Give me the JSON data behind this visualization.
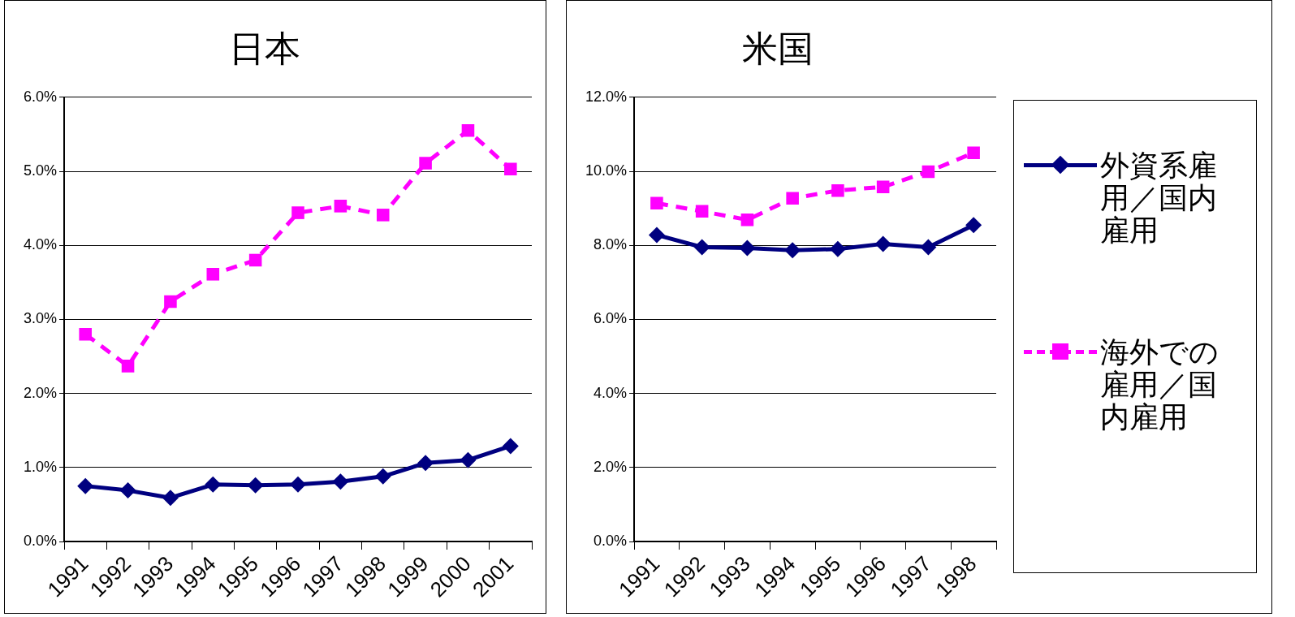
{
  "chart_data": [
    {
      "type": "line",
      "title": "日本",
      "categories": [
        "1991",
        "1992",
        "1993",
        "1994",
        "1995",
        "1996",
        "1997",
        "1998",
        "1999",
        "2000",
        "2001"
      ],
      "series": [
        {
          "color": "#000080",
          "marker": "diamond",
          "line_style": "solid",
          "values": [
            0.75,
            0.69,
            0.59,
            0.77,
            0.76,
            0.77,
            0.81,
            0.88,
            1.06,
            1.1,
            1.29
          ]
        },
        {
          "color": "#ff00ff",
          "marker": "square",
          "line_style": "dashed",
          "values": [
            2.8,
            2.37,
            3.24,
            3.61,
            3.8,
            4.44,
            4.53,
            4.41,
            5.11,
            5.55,
            5.03
          ]
        }
      ],
      "ylim": [
        0,
        6
      ],
      "yticks": [
        {
          "value": 0,
          "label": "0.0%"
        },
        {
          "value": 1,
          "label": "1.0%"
        },
        {
          "value": 2,
          "label": "2.0%"
        },
        {
          "value": 3,
          "label": "3.0%"
        },
        {
          "value": 4,
          "label": "4.0%"
        },
        {
          "value": 5,
          "label": "5.0%"
        },
        {
          "value": 6,
          "label": "6.0%"
        }
      ],
      "grid": "y"
    },
    {
      "type": "line",
      "title": "米国",
      "categories": [
        "1991",
        "1992",
        "1993",
        "1994",
        "1995",
        "1996",
        "1997",
        "1998"
      ],
      "series": [
        {
          "name": "外資系雇用／国内雇用",
          "color": "#000080",
          "marker": "diamond",
          "line_style": "solid",
          "values": [
            8.28,
            7.95,
            7.93,
            7.87,
            7.9,
            8.04,
            7.95,
            8.55
          ]
        },
        {
          "name": "海外での雇用／国内雇用",
          "color": "#ff00ff",
          "marker": "square",
          "line_style": "dashed",
          "values": [
            9.14,
            8.92,
            8.69,
            9.27,
            9.48,
            9.58,
            9.99,
            10.5
          ]
        }
      ],
      "ylim": [
        0,
        12
      ],
      "yticks": [
        {
          "value": 0,
          "label": "0.0%"
        },
        {
          "value": 2,
          "label": "2.0%"
        },
        {
          "value": 4,
          "label": "4.0%"
        },
        {
          "value": 6,
          "label": "6.0%"
        },
        {
          "value": 8,
          "label": "8.0%"
        },
        {
          "value": 10,
          "label": "10.0%"
        },
        {
          "value": 12,
          "label": "12.0%"
        }
      ],
      "grid": "y",
      "legend": "right"
    }
  ]
}
